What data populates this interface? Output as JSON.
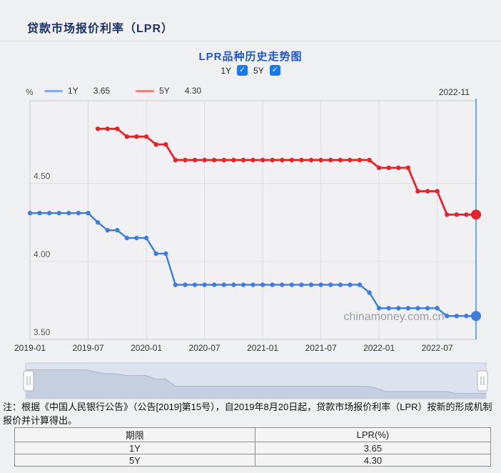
{
  "page": {
    "title": "贷款市场报价利率（LPR）"
  },
  "chart": {
    "title": "LPR品种历史走势图",
    "toggles": [
      {
        "label": "1Y",
        "checked": true
      },
      {
        "label": "5Y",
        "checked": true
      }
    ],
    "unit": "%",
    "legend": [
      {
        "label": "1Y",
        "value": "3.65",
        "color": "#84aaec"
      },
      {
        "label": "5Y",
        "value": "4.30",
        "color": "#f57f7f"
      }
    ],
    "current_period": "2022-11",
    "watermark": "chinamoney.com.cn"
  },
  "chart_data": {
    "type": "line",
    "title": "LPR品种历史走势图",
    "xlabel": "",
    "ylabel": "%",
    "ylim": [
      3.5,
      5.03
    ],
    "grid": true,
    "legend_position": "top",
    "highlight_x": "2022-11",
    "x": [
      "2019-01",
      "2019-02",
      "2019-03",
      "2019-04",
      "2019-05",
      "2019-06",
      "2019-07",
      "2019-08",
      "2019-09",
      "2019-10",
      "2019-11",
      "2019-12",
      "2020-01",
      "2020-02",
      "2020-03",
      "2020-04",
      "2020-05",
      "2020-06",
      "2020-07",
      "2020-08",
      "2020-09",
      "2020-10",
      "2020-11",
      "2020-12",
      "2021-01",
      "2021-02",
      "2021-03",
      "2021-04",
      "2021-05",
      "2021-06",
      "2021-07",
      "2021-08",
      "2021-09",
      "2021-10",
      "2021-11",
      "2021-12",
      "2022-01",
      "2022-02",
      "2022-03",
      "2022-04",
      "2022-05",
      "2022-06",
      "2022-07",
      "2022-08",
      "2022-09",
      "2022-10",
      "2022-11"
    ],
    "x_tick_labels": [
      "2019-01",
      "2019-07",
      "2020-01",
      "2020-07",
      "2021-01",
      "2021-07",
      "2022-01",
      "2022-07"
    ],
    "y_ticks": [
      {
        "label": "4.50",
        "value": 4.5
      },
      {
        "label": "4.00",
        "value": 4.0
      },
      {
        "label": "3.50",
        "value": 3.5
      }
    ],
    "series": [
      {
        "name": "1Y",
        "color": "#3b7ee0",
        "values": [
          4.31,
          4.31,
          4.31,
          4.31,
          4.31,
          4.31,
          4.31,
          4.25,
          4.2,
          4.2,
          4.15,
          4.15,
          4.15,
          4.05,
          4.05,
          3.85,
          3.85,
          3.85,
          3.85,
          3.85,
          3.85,
          3.85,
          3.85,
          3.85,
          3.85,
          3.85,
          3.85,
          3.85,
          3.85,
          3.85,
          3.85,
          3.85,
          3.85,
          3.85,
          3.85,
          3.8,
          3.7,
          3.7,
          3.7,
          3.7,
          3.7,
          3.7,
          3.7,
          3.65,
          3.65,
          3.65,
          3.65
        ]
      },
      {
        "name": "5Y",
        "color": "#e82226",
        "values": [
          null,
          null,
          null,
          null,
          null,
          null,
          null,
          4.85,
          4.85,
          4.85,
          4.8,
          4.8,
          4.8,
          4.75,
          4.75,
          4.65,
          4.65,
          4.65,
          4.65,
          4.65,
          4.65,
          4.65,
          4.65,
          4.65,
          4.65,
          4.65,
          4.65,
          4.65,
          4.65,
          4.65,
          4.65,
          4.65,
          4.65,
          4.65,
          4.65,
          4.65,
          4.6,
          4.6,
          4.6,
          4.6,
          4.45,
          4.45,
          4.45,
          4.3,
          4.3,
          4.3,
          4.3
        ]
      }
    ]
  },
  "note": "注：根据《中国人民银行公告》（公告[2019]第15号），自2019年8月20日起，贷款市场报价利率（LPR）按新的形成机制报价并计算得出。",
  "table": {
    "headers": [
      "期限",
      "LPR(%)"
    ],
    "rows": [
      {
        "term": "1Y",
        "rate": "3.65"
      },
      {
        "term": "5Y",
        "rate": "4.30"
      }
    ]
  },
  "colors": {
    "page_bg": "#eff0f2",
    "plot_bg": "#f1f1f3",
    "plot_border": "#c9ccd3",
    "grid": "#dcdee4",
    "series_1y": "#3b7ee0",
    "series_5y": "#e82226",
    "highlight_line": "#4f93d8",
    "watermark": "#9aa0a8",
    "minimap_bg": "#dce3ee",
    "minimap_fill": "#c5cfdf",
    "minimap_edge": "#aab6ca",
    "axis_text": "#555"
  }
}
